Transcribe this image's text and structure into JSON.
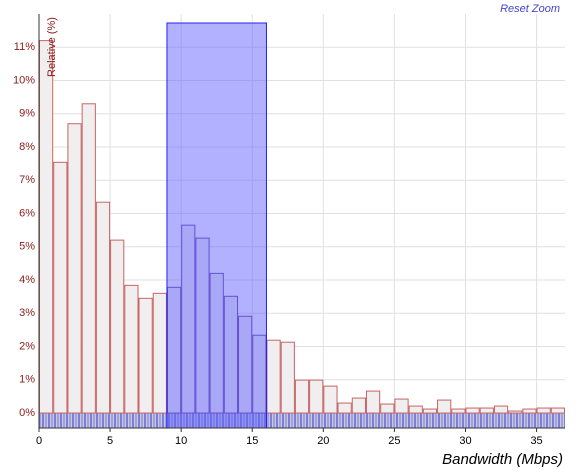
{
  "chart_data": {
    "type": "histogram",
    "x_label": "Bandwidth (Mbps)",
    "y_label": "Relative (%)",
    "reset_button": "Reset Zoom",
    "bins": [
      0,
      1,
      2,
      3,
      4,
      5,
      6,
      7,
      8,
      9,
      10,
      11,
      12,
      13,
      14,
      15,
      16,
      17,
      18,
      19,
      20,
      21,
      22,
      23,
      24,
      25,
      26,
      27,
      28,
      29,
      30,
      31,
      32,
      33,
      34,
      35,
      36,
      37
    ],
    "values": [
      11.2,
      7.54,
      8.7,
      9.3,
      6.34,
      5.2,
      3.84,
      3.45,
      3.6,
      3.78,
      5.65,
      5.26,
      4.2,
      3.51,
      2.91,
      2.34,
      2.19,
      2.13,
      0.99,
      0.99,
      0.81,
      0.3,
      0.45,
      0.66,
      0.27,
      0.42,
      0.21,
      0.12,
      0.39,
      0.12,
      0.15,
      0.15,
      0.21,
      0.06,
      0.12,
      0.15,
      0.15
    ],
    "color": "#f0eeee",
    "edge_color": "#c86464",
    "selected_edge_color": "#6a4aa8",
    "selection": [
      9,
      16
    ],
    "selection_color": "#5b5bff",
    "xlim": [
      0,
      37
    ],
    "xticks": [
      0,
      5,
      10,
      15,
      20,
      25,
      30,
      35
    ],
    "ylim": [
      -0.45,
      12
    ],
    "yticks": [
      {
        "value": 0,
        "label": "0%"
      },
      {
        "value": 1,
        "label": "1%"
      },
      {
        "value": 2,
        "label": "2%"
      },
      {
        "value": 3,
        "label": "3%"
      },
      {
        "value": 4,
        "label": "4%"
      },
      {
        "value": 5,
        "label": "5%"
      },
      {
        "value": 6,
        "label": "6%"
      },
      {
        "value": 7,
        "label": "7%"
      },
      {
        "value": 8,
        "label": "8%"
      },
      {
        "value": 9,
        "label": "9%"
      },
      {
        "value": 10,
        "label": "10%"
      },
      {
        "value": 11,
        "label": "11%"
      }
    ],
    "grid": true
  }
}
